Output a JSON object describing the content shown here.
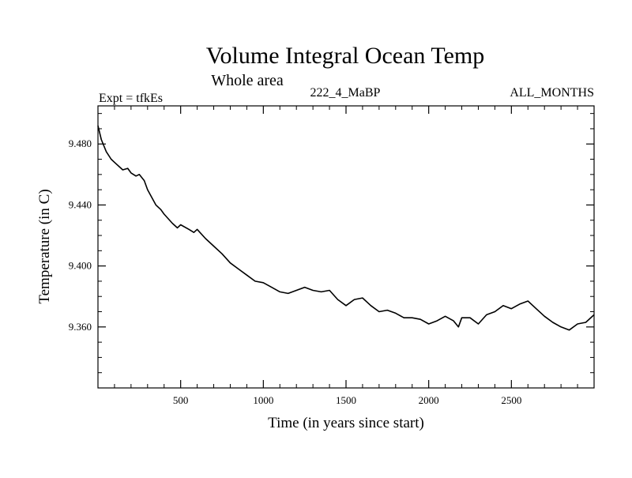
{
  "chart_data": {
    "type": "line",
    "title": "Volume Integral Ocean Temp",
    "subtitle": "Whole area",
    "left_label": "Expt = tfkEs",
    "center_label": "222_4_MaBP",
    "right_label": "ALL_MONTHS",
    "xlabel": "Time (in years since start)",
    "ylabel": "Temperature (in C)",
    "xlim": [
      0,
      3000
    ],
    "ylim": [
      9.32,
      9.505
    ],
    "x_ticks": [
      500,
      1000,
      1500,
      2000,
      2500
    ],
    "x_tick_labels": [
      "500",
      "1000",
      "1500",
      "2000",
      "2500"
    ],
    "y_ticks": [
      9.36,
      9.4,
      9.44,
      9.48
    ],
    "y_tick_labels": [
      "9.360",
      "9.400",
      "9.440",
      "9.480"
    ],
    "grid": false,
    "line_color": "#000000",
    "series": [
      {
        "x": [
          0,
          20,
          50,
          80,
          100,
          150,
          180,
          200,
          230,
          250,
          280,
          300,
          350,
          380,
          400,
          450,
          480,
          500,
          550,
          580,
          600,
          650,
          700,
          750,
          800,
          850,
          900,
          950,
          1000,
          1050,
          1100,
          1150,
          1200,
          1250,
          1300,
          1350,
          1400,
          1450,
          1500,
          1550,
          1600,
          1650,
          1700,
          1750,
          1800,
          1850,
          1900,
          1950,
          2000,
          2050,
          2100,
          2150,
          2180,
          2200,
          2250,
          2300,
          2350,
          2400,
          2450,
          2500,
          2550,
          2600,
          2650,
          2700,
          2750,
          2800,
          2850,
          2900,
          2950,
          3000
        ],
        "y": [
          9.492,
          9.483,
          9.475,
          9.47,
          9.468,
          9.463,
          9.464,
          9.461,
          9.459,
          9.46,
          9.456,
          9.45,
          9.44,
          9.437,
          9.434,
          9.428,
          9.425,
          9.427,
          9.424,
          9.422,
          9.424,
          9.418,
          9.413,
          9.408,
          9.402,
          9.398,
          9.394,
          9.39,
          9.389,
          9.386,
          9.383,
          9.382,
          9.384,
          9.386,
          9.384,
          9.383,
          9.384,
          9.378,
          9.374,
          9.378,
          9.379,
          9.374,
          9.37,
          9.371,
          9.369,
          9.366,
          9.366,
          9.365,
          9.362,
          9.364,
          9.367,
          9.364,
          9.36,
          9.366,
          9.366,
          9.362,
          9.368,
          9.37,
          9.374,
          9.372,
          9.375,
          9.377,
          9.372,
          9.367,
          9.363,
          9.36,
          9.358,
          9.362,
          9.363,
          9.368
        ]
      }
    ]
  }
}
